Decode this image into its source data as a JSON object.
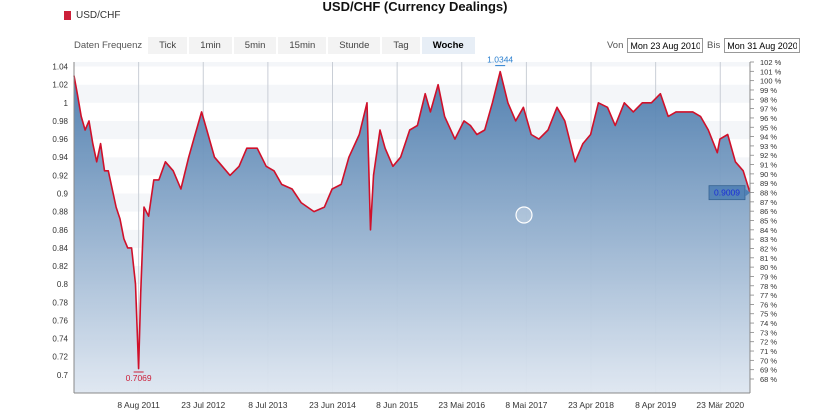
{
  "header": {
    "title": "USD/CHF (Currency Dealings)",
    "legend_label": "USD/CHF",
    "legend_color": "#cc1f39"
  },
  "toolbar": {
    "label": "Daten Frequenz",
    "buttons": [
      "Tick",
      "1min",
      "5min",
      "15min",
      "Stunde",
      "Tag",
      "Woche"
    ],
    "active": "Woche"
  },
  "range": {
    "from_label": "Von",
    "from_value": "Mon 23 Aug 2010",
    "to_label": "Bis",
    "to_value": "Mon 31 Aug 2020"
  },
  "colors": {
    "line": "#d0102a",
    "area_top": "#4a7aac",
    "area_bottom": "#dfe7f1",
    "max_label": "#2a7fcf",
    "min_label": "#cc1f39",
    "last_label_bg": "#4f80b5",
    "last_label_text": "#1a2fd8"
  },
  "chart_data": {
    "type": "area",
    "title": "USD/CHF (Currency Dealings)",
    "series": [
      {
        "name": "USD/CHF"
      }
    ],
    "x": [
      "2010-08-23",
      "2010-09-10",
      "2010-10-01",
      "2010-10-22",
      "2010-11-12",
      "2010-12-03",
      "2010-12-24",
      "2011-01-14",
      "2011-02-04",
      "2011-02-25",
      "2011-03-18",
      "2011-04-08",
      "2011-04-29",
      "2011-05-20",
      "2011-06-10",
      "2011-07-01",
      "2011-07-22",
      "2011-08-08",
      "2011-08-19",
      "2011-09-06",
      "2011-10-01",
      "2011-10-29",
      "2011-11-26",
      "2011-12-31",
      "2012-02-11",
      "2012-03-24",
      "2012-05-05",
      "2012-06-02",
      "2012-07-14",
      "2012-08-11",
      "2012-09-22",
      "2012-11-03",
      "2012-12-15",
      "2013-02-02",
      "2013-03-16",
      "2013-05-11",
      "2013-06-29",
      "2013-08-10",
      "2013-09-21",
      "2013-11-16",
      "2014-01-04",
      "2014-03-15",
      "2014-05-10",
      "2014-06-21",
      "2014-08-09",
      "2014-09-20",
      "2014-11-15",
      "2014-12-27",
      "2015-01-15",
      "2015-01-31",
      "2015-03-07",
      "2015-04-04",
      "2015-05-16",
      "2015-06-27",
      "2015-08-15",
      "2015-09-26",
      "2015-11-07",
      "2015-12-05",
      "2016-01-16",
      "2016-02-20",
      "2016-04-16",
      "2016-06-04",
      "2016-07-09",
      "2016-08-13",
      "2016-09-24",
      "2016-11-05",
      "2016-12-17",
      "2017-01-28",
      "2017-03-11",
      "2017-04-22",
      "2017-06-03",
      "2017-07-15",
      "2017-09-02",
      "2017-10-21",
      "2017-12-02",
      "2018-01-27",
      "2018-03-10",
      "2018-04-21",
      "2018-06-02",
      "2018-07-21",
      "2018-09-01",
      "2018-10-20",
      "2018-12-08",
      "2019-01-26",
      "2019-03-16",
      "2019-05-04",
      "2019-06-15",
      "2019-07-27",
      "2019-09-14",
      "2019-10-26",
      "2019-12-07",
      "2020-01-18",
      "2020-03-07",
      "2020-03-21",
      "2020-05-02",
      "2020-06-13",
      "2020-07-25",
      "2020-08-31"
    ],
    "values": [
      1.03,
      1.01,
      0.985,
      0.97,
      0.98,
      0.955,
      0.935,
      0.955,
      0.925,
      0.925,
      0.905,
      0.885,
      0.872,
      0.85,
      0.84,
      0.84,
      0.8,
      0.7069,
      0.79,
      0.885,
      0.875,
      0.915,
      0.915,
      0.935,
      0.925,
      0.905,
      0.94,
      0.96,
      0.99,
      0.97,
      0.94,
      0.93,
      0.92,
      0.93,
      0.95,
      0.95,
      0.93,
      0.925,
      0.91,
      0.905,
      0.89,
      0.88,
      0.885,
      0.905,
      0.91,
      0.94,
      0.965,
      1.0,
      0.86,
      0.92,
      0.97,
      0.95,
      0.93,
      0.94,
      0.97,
      0.975,
      1.01,
      0.99,
      1.02,
      0.985,
      0.96,
      0.98,
      0.975,
      0.965,
      0.97,
      1.0,
      1.0344,
      1.0,
      0.98,
      0.995,
      0.965,
      0.96,
      0.97,
      0.995,
      0.98,
      0.935,
      0.955,
      0.965,
      1.0,
      0.995,
      0.975,
      1.0,
      0.99,
      1.0,
      1.0,
      1.01,
      0.985,
      0.99,
      0.99,
      0.99,
      0.985,
      0.97,
      0.945,
      0.96,
      0.965,
      0.935,
      0.925,
      0.9009
    ],
    "xlim": [
      "2010-08-23",
      "2020-08-31"
    ],
    "ylim": [
      0.68,
      1.045
    ],
    "yticks": [
      0.7,
      0.72,
      0.74,
      0.76,
      0.78,
      0.8,
      0.82,
      0.84,
      0.86,
      0.88,
      0.9,
      0.92,
      0.94,
      0.96,
      0.98,
      1,
      1.02,
      1.04
    ],
    "xtick_labels": [
      "8 Aug 2011",
      "23 Jul 2012",
      "8 Jul 2013",
      "23 Jun 2014",
      "8 Jun 2015",
      "23 Mai 2016",
      "8 Mai 2017",
      "23 Apr 2018",
      "8 Apr 2019",
      "23 Mär 2020"
    ],
    "xtick_dates": [
      "2011-08-08",
      "2012-07-23",
      "2013-07-08",
      "2014-06-23",
      "2015-06-08",
      "2016-05-23",
      "2017-05-08",
      "2018-04-23",
      "2019-04-08",
      "2020-03-23"
    ],
    "right_axis_labels": [
      "68 %",
      "69 %",
      "70 %",
      "71 %",
      "72 %",
      "73 %",
      "74 %",
      "75 %",
      "76 %",
      "77 %",
      "78 %",
      "79 %",
      "80 %",
      "81 %",
      "82 %",
      "83 %",
      "84 %",
      "85 %",
      "86 %",
      "87 %",
      "88 %",
      "89 %",
      "90 %",
      "91 %",
      "92 %",
      "93 %",
      "94 %",
      "95 %",
      "96 %",
      "97 %",
      "98 %",
      "99 %",
      "100 %",
      "101 %",
      "102 %"
    ],
    "max_label": "1.0344",
    "max_date": "2016-12-17",
    "min_label": "0.7069",
    "min_date": "2011-08-08",
    "last_label": "0.9009",
    "grid": true,
    "legend": "top-left"
  }
}
